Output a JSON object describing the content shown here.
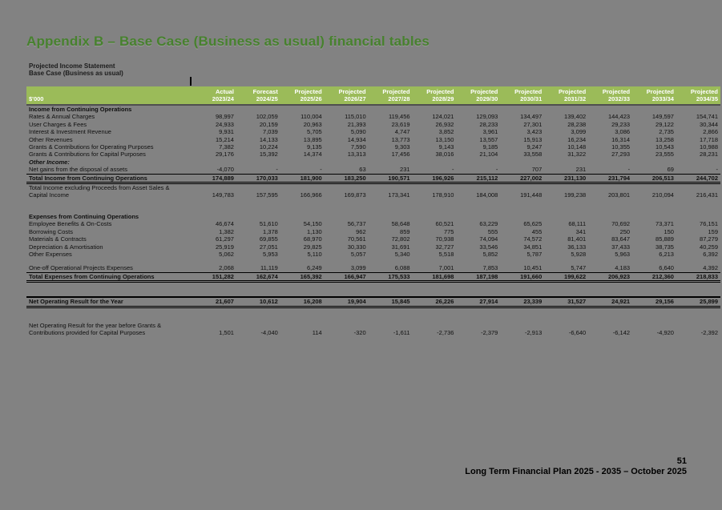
{
  "page": {
    "title": "Appendix B – Base Case (Business as usual) financial tables",
    "subtitle1": "Projected Income Statement",
    "subtitle2": "Base Case (Business as usual)",
    "page_number": "51",
    "footer": "Long Term Financial Plan 2025 - 2035 – October 2025"
  },
  "colors": {
    "header_green": "#9bbb59",
    "title_green": "#47812e",
    "page_background": "#828282"
  },
  "table": {
    "unit_label": "$'000",
    "columns": [
      {
        "label": "Actual",
        "year": "2023/24"
      },
      {
        "label": "Forecast",
        "year": "2024/25"
      },
      {
        "label": "Projected",
        "year": "2025/26"
      },
      {
        "label": "Projected",
        "year": "2026/27"
      },
      {
        "label": "Projected",
        "year": "2027/28"
      },
      {
        "label": "Projected",
        "year": "2028/29"
      },
      {
        "label": "Projected",
        "year": "2029/30"
      },
      {
        "label": "Projected",
        "year": "2030/31"
      },
      {
        "label": "Projected",
        "year": "2031/32"
      },
      {
        "label": "Projected",
        "year": "2032/33"
      },
      {
        "label": "Projected",
        "year": "2033/34"
      },
      {
        "label": "Projected",
        "year": "2034/35"
      }
    ],
    "rows": [
      {
        "label": "Income from Continuing Operations",
        "style": "section",
        "values": null
      },
      {
        "label": "Rates & Annual Charges",
        "style": "item",
        "values": [
          "98,997",
          "102,059",
          "110,004",
          "115,010",
          "119,456",
          "124,021",
          "129,093",
          "134,497",
          "139,402",
          "144,423",
          "149,597",
          "154,741"
        ]
      },
      {
        "label": "User Charges & Fees",
        "style": "item",
        "values": [
          "24,933",
          "20,159",
          "20,963",
          "21,393",
          "23,619",
          "26,932",
          "28,233",
          "27,301",
          "28,238",
          "29,233",
          "29,122",
          "30,344"
        ]
      },
      {
        "label": "Interest & Investment Revenue",
        "style": "item",
        "values": [
          "9,931",
          "7,039",
          "5,705",
          "5,090",
          "4,747",
          "3,852",
          "3,961",
          "3,423",
          "3,099",
          "3,086",
          "2,735",
          "2,866"
        ]
      },
      {
        "label": "Other Revenues",
        "style": "item",
        "values": [
          "15,214",
          "14,133",
          "13,895",
          "14,934",
          "13,773",
          "13,150",
          "13,557",
          "15,913",
          "16,234",
          "16,314",
          "13,258",
          "17,718"
        ]
      },
      {
        "label": "Grants & Contributions for Operating Purposes",
        "style": "item",
        "values": [
          "7,382",
          "10,224",
          "9,135",
          "7,590",
          "9,303",
          "9,143",
          "9,185",
          "9,247",
          "10,148",
          "10,355",
          "10,543",
          "10,988"
        ]
      },
      {
        "label": "Grants & Contributions for Capital Purposes",
        "style": "item",
        "values": [
          "29,176",
          "15,392",
          "14,374",
          "13,313",
          "17,456",
          "38,016",
          "21,104",
          "33,558",
          "31,322",
          "27,293",
          "23,555",
          "28,231"
        ]
      },
      {
        "label": "Other Income:",
        "style": "section-italic",
        "values": null
      },
      {
        "label": "Net gains from the disposal of assets",
        "style": "item",
        "values": [
          "-4,070",
          "-",
          "-",
          "63",
          "231",
          "-",
          "-",
          "707",
          "231",
          "-",
          "69",
          "-"
        ]
      },
      {
        "label": "Total Income from Continuing Operations",
        "style": "total",
        "values": [
          "174,889",
          "170,033",
          "181,900",
          "183,250",
          "190,571",
          "196,926",
          "215,112",
          "227,002",
          "231,130",
          "231,794",
          "206,513",
          "244,702"
        ]
      },
      {
        "label": "Total Income excluding Proceeds from Asset Sales &",
        "style": "carry",
        "values": null
      },
      {
        "label": "Capital Income",
        "style": "carry",
        "values": [
          "149,783",
          "157,595",
          "166,966",
          "169,873",
          "173,341",
          "178,910",
          "184,008",
          "191,448",
          "199,238",
          "203,801",
          "210,094",
          "216,431"
        ]
      },
      {
        "label": "",
        "style": "spacer",
        "values": null
      },
      {
        "label": "Expenses from Continuing Operations",
        "style": "section",
        "values": null
      },
      {
        "label": "Employee Benefits & On-Costs",
        "style": "item",
        "values": [
          "46,674",
          "51,610",
          "54,150",
          "56,737",
          "58,648",
          "60,521",
          "63,229",
          "65,625",
          "68,111",
          "70,692",
          "73,371",
          "76,151"
        ]
      },
      {
        "label": "Borrowing Costs",
        "style": "item",
        "values": [
          "1,382",
          "1,378",
          "1,130",
          "962",
          "859",
          "775",
          "555",
          "455",
          "341",
          "250",
          "150",
          "159"
        ]
      },
      {
        "label": "Materials & Contracts",
        "style": "item",
        "values": [
          "61,297",
          "69,855",
          "68,970",
          "70,561",
          "72,802",
          "70,938",
          "74,094",
          "74,572",
          "81,401",
          "83,647",
          "85,889",
          "87,279"
        ]
      },
      {
        "label": "Depreciation & Amortisation",
        "style": "item",
        "values": [
          "25,919",
          "27,051",
          "29,825",
          "30,330",
          "31,691",
          "32,727",
          "33,546",
          "34,851",
          "36,133",
          "37,433",
          "38,735",
          "40,259"
        ]
      },
      {
        "label": "Other Expenses",
        "style": "item",
        "values": [
          "5,062",
          "5,953",
          "5,110",
          "5,057",
          "5,340",
          "5,518",
          "5,852",
          "5,787",
          "5,928",
          "5,963",
          "6,213",
          "6,392"
        ]
      },
      {
        "label": "",
        "style": "spacer-small",
        "values": null
      },
      {
        "label": "One-off Operational Projects Expenses",
        "style": "item",
        "values": [
          "2,068",
          "11,119",
          "6,249",
          "3,099",
          "6,088",
          "7,001",
          "7,853",
          "10,451",
          "5,747",
          "4,183",
          "6,640",
          "4,392"
        ]
      },
      {
        "label": "Total Expenses from Continuing Operations",
        "style": "total",
        "values": [
          "151,282",
          "162,674",
          "165,392",
          "166,947",
          "175,533",
          "181,698",
          "187,198",
          "191,660",
          "199,622",
          "206,923",
          "212,360",
          "218,833"
        ]
      },
      {
        "label": "",
        "style": "spacer",
        "values": null
      },
      {
        "label": "Net Operating Result for the Year",
        "style": "net",
        "values": [
          "21,607",
          "10,612",
          "16,208",
          "19,904",
          "15,845",
          "26,226",
          "27,914",
          "23,339",
          "31,527",
          "24,921",
          "29,156",
          "25,899"
        ]
      },
      {
        "label": "",
        "style": "spacer",
        "values": null
      },
      {
        "label": "Net Operating Result for the year before Grants &",
        "style": "carry",
        "values": null
      },
      {
        "label": "Contributions provided for Capital Purposes",
        "style": "carry",
        "values": [
          "1,501",
          "-4,040",
          "114",
          "-320",
          "-1,611",
          "-2,736",
          "-2,379",
          "-2,913",
          "-6,640",
          "-6,142",
          "-4,920",
          "-2,392"
        ]
      }
    ]
  }
}
